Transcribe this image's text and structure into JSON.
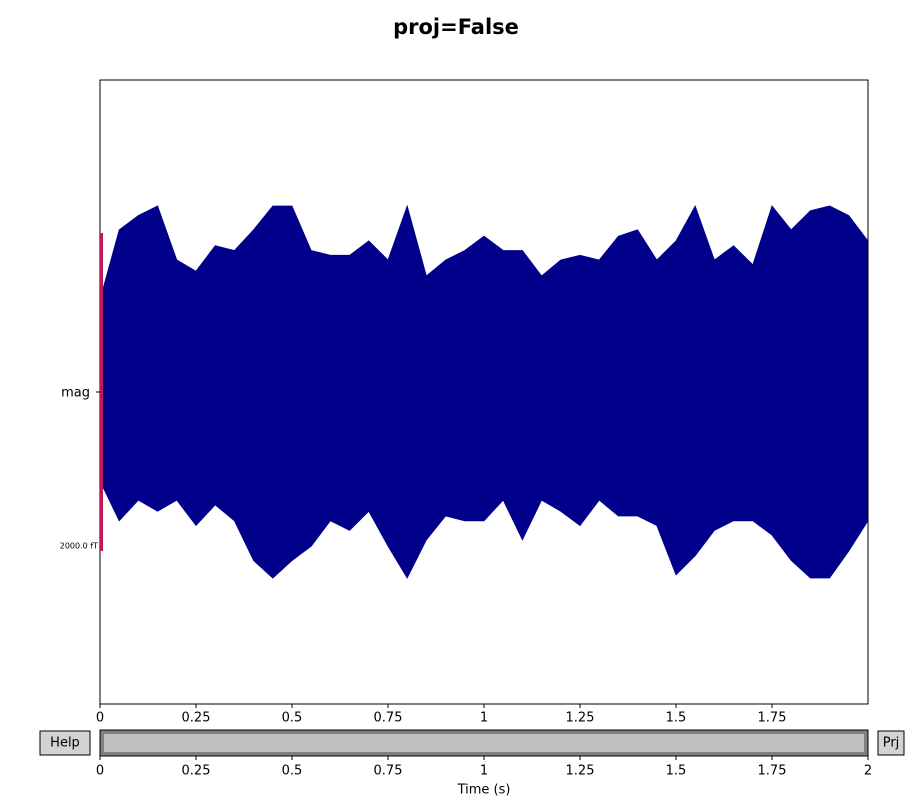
{
  "chart_data": {
    "type": "butterfly",
    "title": "proj=False",
    "color": "#00008b",
    "channels": [
      "mag"
    ],
    "scale_bar": {
      "value": 2000,
      "label": "2000.0 fT",
      "color": "#c2185b"
    },
    "xlim": [
      0,
      2
    ],
    "xticks": [
      0,
      0.25,
      0.5,
      0.75,
      1,
      1.25,
      1.5,
      1.75
    ],
    "t": [
      0,
      0.05,
      0.1,
      0.15,
      0.2,
      0.25,
      0.3,
      0.35,
      0.4,
      0.45,
      0.5,
      0.55,
      0.6,
      0.65,
      0.7,
      0.75,
      0.8,
      0.85,
      0.9,
      0.95,
      1,
      1.05,
      1.1,
      1.15,
      1.2,
      1.25,
      1.3,
      1.35,
      1.4,
      1.45,
      1.5,
      1.55,
      1.6,
      1.65,
      1.7,
      1.75,
      1.8,
      1.85,
      1.9,
      1.95,
      2
    ],
    "envelope_upper": [
      580,
      1020,
      1110,
      1170,
      830,
      760,
      920,
      890,
      1020,
      1170,
      1170,
      890,
      860,
      860,
      950,
      830,
      1170,
      730,
      830,
      890,
      980,
      890,
      890,
      730,
      830,
      860,
      830,
      980,
      1020,
      830,
      950,
      1170,
      830,
      920,
      800,
      1170,
      1020,
      1140,
      1170,
      1110,
      950
    ],
    "envelope_lower": [
      -560,
      -810,
      -680,
      -750,
      -680,
      -840,
      -710,
      -810,
      -1060,
      -1170,
      -1060,
      -970,
      -810,
      -870,
      -750,
      -970,
      -1170,
      -930,
      -780,
      -810,
      -810,
      -680,
      -930,
      -680,
      -750,
      -840,
      -680,
      -780,
      -780,
      -840,
      -1150,
      -1030,
      -870,
      -810,
      -810,
      -900,
      -1060,
      -1170,
      -1170,
      -1000,
      -810
    ],
    "scrollbar": {
      "xlim": [
        0,
        2
      ],
      "xticks": [
        0,
        0.25,
        0.5,
        0.75,
        1,
        1.25,
        1.5,
        1.75,
        2
      ],
      "window": [
        0,
        2
      ],
      "xlabel": "Time (s)"
    },
    "buttons": [
      "Help",
      "Prj"
    ]
  }
}
